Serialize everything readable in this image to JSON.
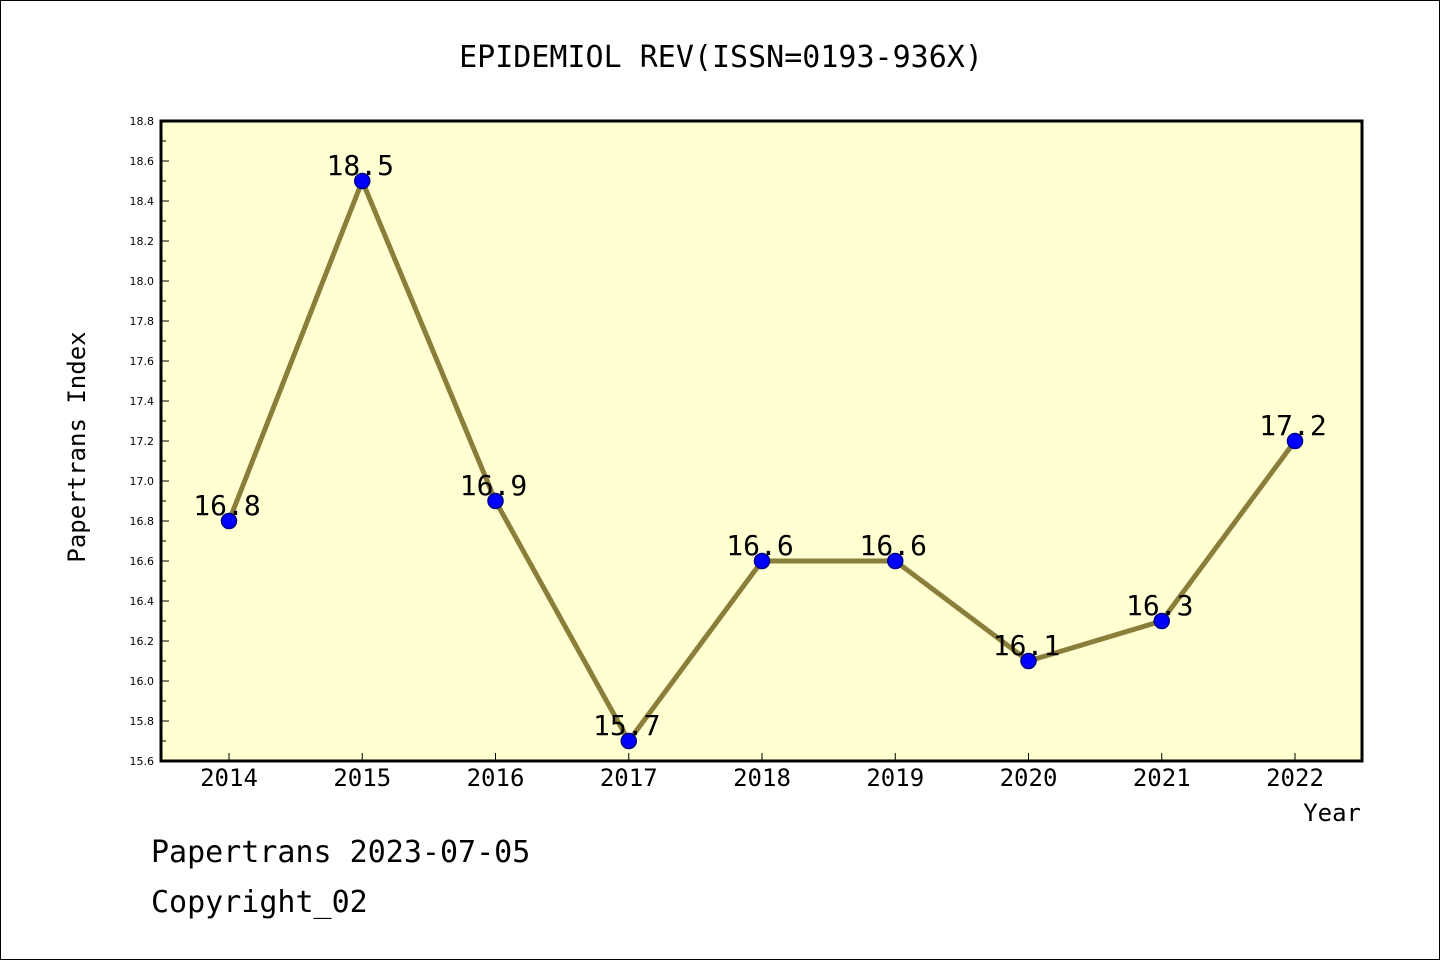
{
  "chart_data": {
    "type": "line",
    "title": "EPIDEMIOL REV(ISSN=0193-936X)",
    "xlabel": "Year",
    "ylabel": "Papertrans Index",
    "categories": [
      "2014",
      "2015",
      "2016",
      "2017",
      "2018",
      "2019",
      "2020",
      "2021",
      "2022"
    ],
    "series": [
      {
        "values": [
          16.8,
          18.5,
          16.9,
          15.7,
          16.6,
          16.6,
          16.1,
          16.3,
          17.2
        ],
        "data_labels": [
          "16.8",
          "18.5",
          "16.9",
          "15.7",
          "16.6",
          "16.6",
          "16.1",
          "16.3",
          "17.2"
        ]
      }
    ],
    "ylim": [
      15.6,
      18.8
    ],
    "yticks": [
      "15.6",
      "15.8",
      "16.0",
      "16.2",
      "16.4",
      "16.6",
      "16.8",
      "17.0",
      "17.2",
      "17.4",
      "17.6",
      "17.8",
      "18.0",
      "18.2",
      "18.4",
      "18.6",
      "18.8"
    ],
    "grid": false,
    "legend": "none",
    "colors": {
      "plot_background": "#ffffd2",
      "line": "#8b7d3a",
      "marker": "#0000ff",
      "marker_edge": "#00008b",
      "axis": "#000000"
    }
  },
  "footer": {
    "date_line": "Papertrans 2023-07-05",
    "copyright_line": "Copyright_02"
  }
}
